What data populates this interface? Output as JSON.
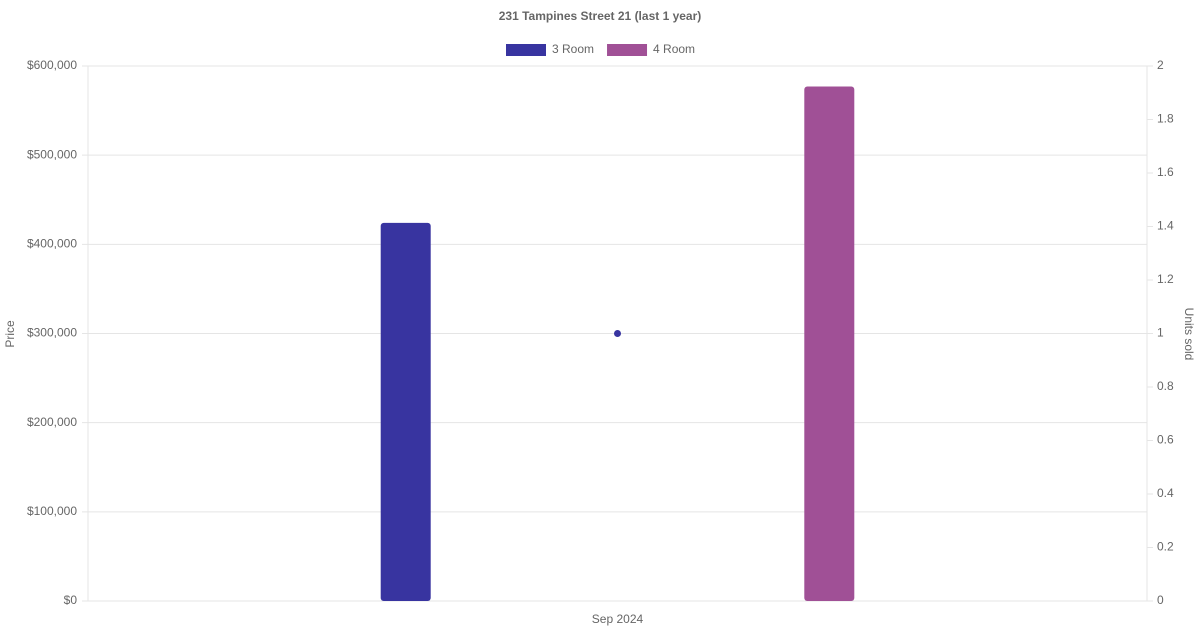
{
  "chart_data": {
    "type": "bar",
    "title": "231 Tampines Street 21 (last 1 year)",
    "categories": [
      "Sep 2024"
    ],
    "series": [
      {
        "name": "3 Room",
        "color": "#3834a0",
        "values": [
          424000
        ]
      },
      {
        "name": "4 Room",
        "color": "#a05096",
        "values": [
          577000
        ]
      },
      {
        "type": "line",
        "axis": "y2",
        "color": "#3834a0",
        "values": [
          1
        ]
      }
    ],
    "ylabel": "Price",
    "y2label": "Units sold",
    "ylim": [
      0,
      600000
    ],
    "yticks": [
      {
        "value": 0,
        "label": "$0"
      },
      {
        "value": 100000,
        "label": "$100,000"
      },
      {
        "value": 200000,
        "label": "$200,000"
      },
      {
        "value": 300000,
        "label": "$300,000"
      },
      {
        "value": 400000,
        "label": "$400,000"
      },
      {
        "value": 500000,
        "label": "$500,000"
      },
      {
        "value": 600000,
        "label": "$600,000"
      }
    ],
    "y2lim": [
      0,
      2
    ],
    "y2ticks": [
      0,
      0.2,
      0.4,
      0.6,
      0.8,
      1,
      1.2,
      1.4,
      1.6,
      1.8,
      2
    ],
    "grid": true,
    "legend": "top"
  }
}
